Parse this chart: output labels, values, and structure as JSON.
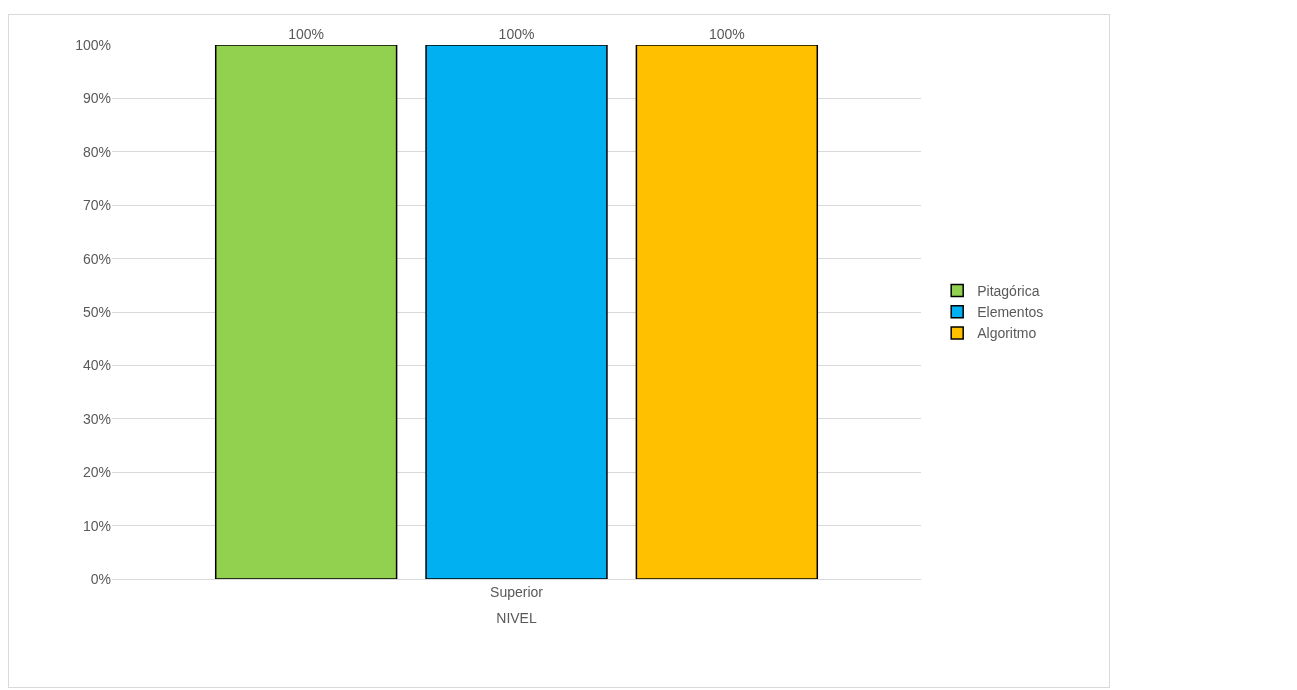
{
  "chart_data": {
    "type": "bar",
    "categories": [
      "Superior"
    ],
    "xlabel": "NIVEL",
    "series": [
      {
        "name": "Pitagórica",
        "color": "#92d050",
        "values": [
          100
        ],
        "value_labels": [
          "100%"
        ]
      },
      {
        "name": "Elementos",
        "color": "#00b0f0",
        "values": [
          100
        ],
        "value_labels": [
          "100%"
        ]
      },
      {
        "name": "Algoritmo",
        "color": "#ffc000",
        "values": [
          100
        ],
        "value_labels": [
          "100%"
        ]
      }
    ],
    "ylim": [
      0,
      100
    ],
    "yticks": [
      {
        "value": 0,
        "label": "0%"
      },
      {
        "value": 10,
        "label": "10%"
      },
      {
        "value": 20,
        "label": "20%"
      },
      {
        "value": 30,
        "label": "30%"
      },
      {
        "value": 40,
        "label": "40%"
      },
      {
        "value": 50,
        "label": "50%"
      },
      {
        "value": 60,
        "label": "60%"
      },
      {
        "value": 70,
        "label": "70%"
      },
      {
        "value": 80,
        "label": "80%"
      },
      {
        "value": 90,
        "label": "90%"
      },
      {
        "value": 100,
        "label": "100%"
      }
    ],
    "grid": "y",
    "legend": "right"
  }
}
